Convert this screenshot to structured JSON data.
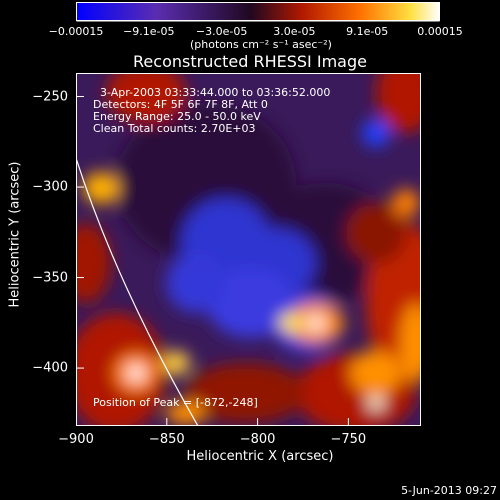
{
  "chart_data": {
    "type": "heatmap",
    "title": "Reconstructed RHESSI Image",
    "xlabel": "Heliocentric X (arcsec)",
    "ylabel": "Heliocentric Y (arcsec)",
    "x_ticks": [
      "-900",
      "-850",
      "-800",
      "-750"
    ],
    "y_ticks": [
      "-250",
      "-300",
      "-350",
      "-400"
    ],
    "xlim": [
      -900,
      -710
    ],
    "ylim": [
      -432,
      -237
    ],
    "colorbar": {
      "ticks": [
        "-0.00015",
        "-9.1e-05",
        "-3.0e-05",
        "3.0e-05",
        "9.1e-05",
        "0.00015"
      ],
      "range": [
        -0.00015,
        0.00015
      ],
      "units": "(photons cm⁻² s⁻¹ asec⁻²)",
      "colormap": [
        "#0000ff",
        "#5a2db0",
        "#2a0a2a",
        "#b01800",
        "#ff7000",
        "#ffe040",
        "#ffffff"
      ]
    },
    "annotations": {
      "time": "3-Apr-2003 03:33:44.000 to 03:36:52.000",
      "detectors": "Detectors: 4F 5F 6F 7F 8F, Att 0",
      "energy": "Energy Range: 25.0 - 50.0 keV",
      "method": "Clean      Total counts: 2.70E+03",
      "peak": "Position of Peak = [-872,-248]"
    },
    "limb_color": "#ffffff"
  },
  "footer_date": "5-Jun-2013 09:27"
}
